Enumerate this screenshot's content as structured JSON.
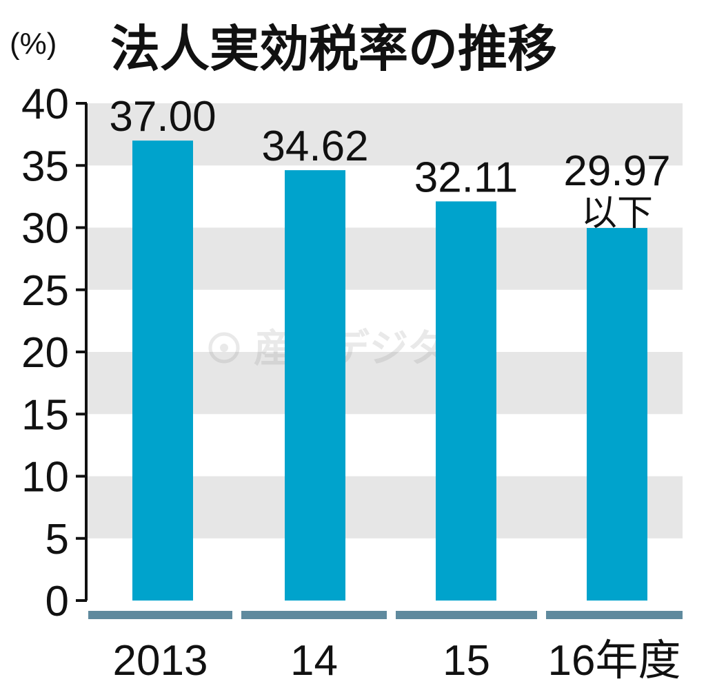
{
  "chart_data": {
    "type": "bar",
    "title": "法人実効税率の推移",
    "ylabel": "(%)",
    "xlabel": "",
    "categories": [
      "2013",
      "14",
      "15",
      "16年度"
    ],
    "values": [
      37.0,
      34.62,
      32.11,
      29.97
    ],
    "data_labels": [
      "37.00",
      "34.62",
      "32.11",
      "29.97"
    ],
    "data_label_notes": [
      "",
      "",
      "",
      "以下"
    ],
    "ylim": [
      0,
      40
    ],
    "yticks": [
      "0",
      "5",
      "10",
      "15",
      "20",
      "25",
      "30",
      "35",
      "40"
    ],
    "grid": "alternating horizontal bands",
    "legend": "none",
    "colors": {
      "bar": "#00a3cc",
      "band": "#e6e6e6",
      "baseline": "#5f8a9e",
      "axis": "#111111"
    }
  },
  "watermark": "産經デジタル"
}
